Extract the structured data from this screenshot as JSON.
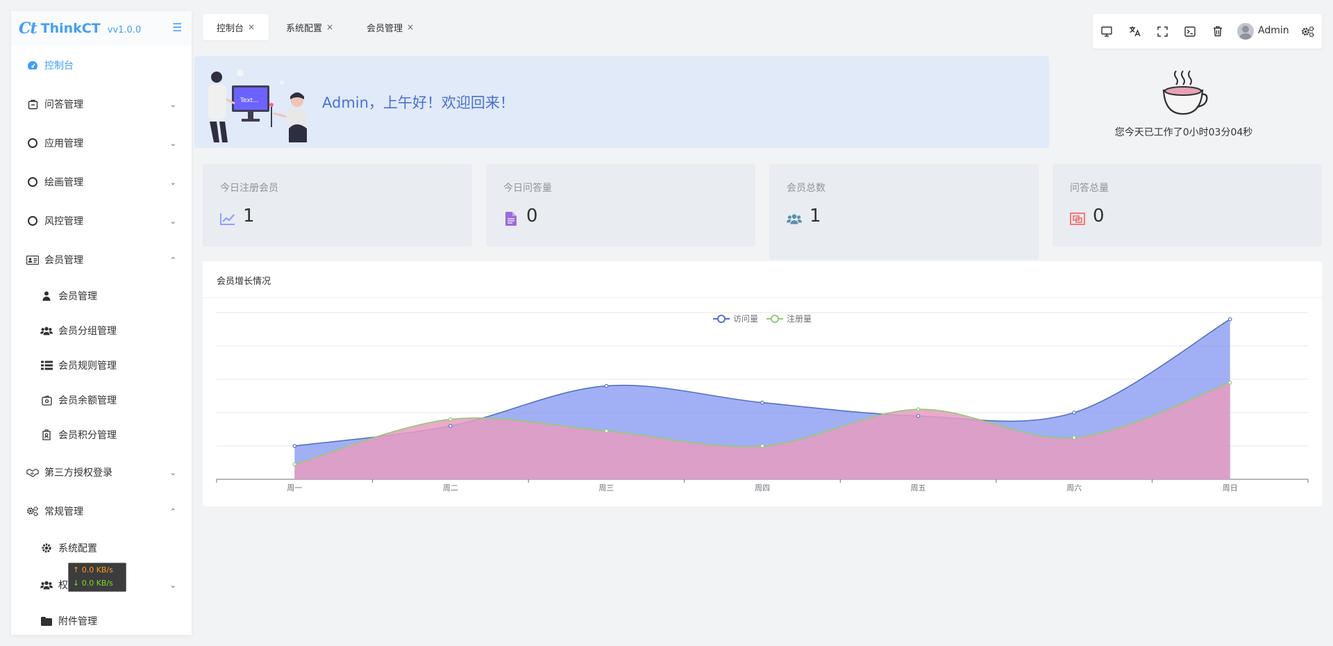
{
  "app": {
    "logo_mark": "Ct",
    "name": "ThinkCT",
    "version": "vv1.0.0"
  },
  "sidebar": {
    "items": [
      {
        "label": "控制台",
        "icon": "dashboard-icon"
      },
      {
        "label": "问答管理",
        "icon": "qa-icon"
      },
      {
        "label": "应用管理",
        "icon": "circle-icon"
      },
      {
        "label": "绘画管理",
        "icon": "circle-icon"
      },
      {
        "label": "风控管理",
        "icon": "circle-icon"
      },
      {
        "label": "会员管理",
        "icon": "id-card-icon"
      },
      {
        "label": "会员管理",
        "icon": "user-icon"
      },
      {
        "label": "会员分组管理",
        "icon": "users-icon"
      },
      {
        "label": "会员规则管理",
        "icon": "list-icon"
      },
      {
        "label": "会员余额管理",
        "icon": "wallet-icon"
      },
      {
        "label": "会员积分管理",
        "icon": "badge-icon"
      },
      {
        "label": "第三方授权登录",
        "icon": "handshake-icon"
      },
      {
        "label": "常规管理",
        "icon": "gears-icon"
      },
      {
        "label": "系统配置",
        "icon": "gear-icon"
      },
      {
        "label": "权限管理",
        "icon": "users-icon"
      },
      {
        "label": "附件管理",
        "icon": "folder-icon"
      }
    ]
  },
  "tabs": [
    {
      "label": "控制台"
    },
    {
      "label": "系统配置"
    },
    {
      "label": "会员管理"
    }
  ],
  "toolbar": {
    "admin_name": "Admin"
  },
  "banner": {
    "greeting": "Admin，上午好！欢迎回来！",
    "illustration_text": "Text..."
  },
  "work": {
    "text": "您今天已工作了0小时03分04秒"
  },
  "stats": [
    {
      "label": "今日注册会员",
      "value": "1",
      "icon": "chart-line-icon",
      "color": "#8c9eff"
    },
    {
      "label": "今日问答量",
      "value": "0",
      "icon": "file-icon",
      "color": "#9c6ade"
    },
    {
      "label": "会员总数",
      "value": "1",
      "icon": "users-icon",
      "color": "#5b8fb0"
    },
    {
      "label": "问答总量",
      "value": "0",
      "icon": "qa-box-icon",
      "color": "#f56c6c"
    }
  ],
  "net_speed": {
    "up": "↑ 0.0 KB/s",
    "down": "↓ 0.0 KB/s"
  },
  "chart_data": {
    "type": "area",
    "title": "会员增长情况",
    "categories": [
      "周一",
      "周二",
      "周三",
      "周四",
      "周五",
      "周六",
      "周日"
    ],
    "ylim": [
      0,
      50
    ],
    "grid": true,
    "legend_position": "top-center",
    "series": [
      {
        "name": "访问量",
        "values": [
          10,
          16,
          28,
          23,
          19,
          20,
          48
        ],
        "color": "#5470c6",
        "fill": "#8196f0"
      },
      {
        "name": "注册量",
        "values": [
          4.5,
          18,
          14.5,
          10,
          21,
          12.5,
          29
        ],
        "color": "#91cc75",
        "fill": "#e59cc0"
      }
    ]
  }
}
